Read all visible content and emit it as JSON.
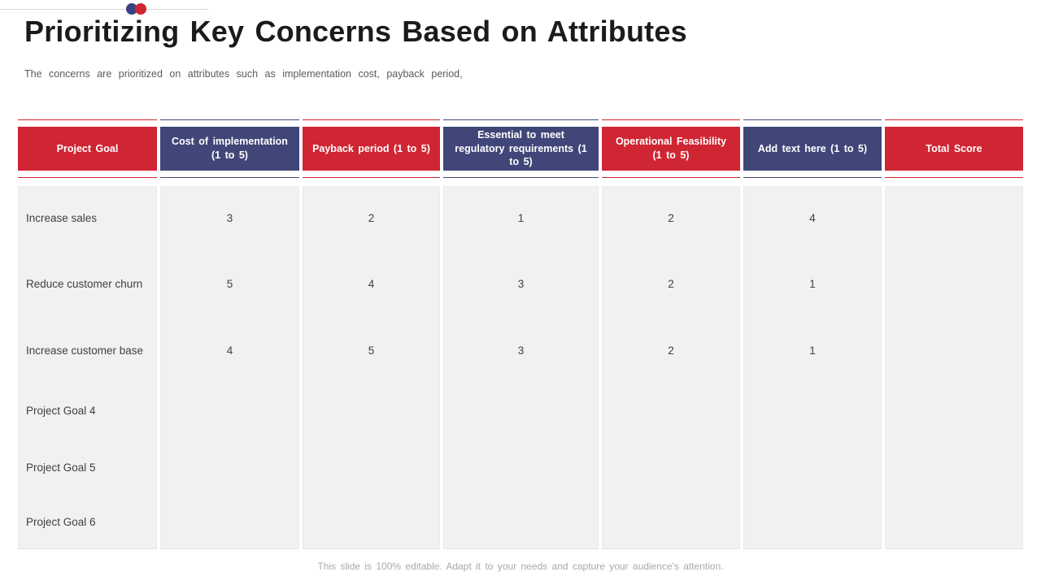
{
  "title": "Prioritizing Key Concerns Based on Attributes",
  "subtitle": "The concerns are prioritized on attributes such as implementation cost, payback period,",
  "colors": {
    "header_red": "#d02533",
    "header_navy": "#414678",
    "dot_navy": "#3a4180",
    "dot_red": "#d02533",
    "cell_background": "#f1f1f2",
    "title_text": "#1b1b1b",
    "body_text": "#404040",
    "footer_text": "#a9a9a9"
  },
  "table": {
    "columns": [
      {
        "label": "Project Goal",
        "tone": "red"
      },
      {
        "label": "Cost of implementation (1 to 5)",
        "tone": "navy"
      },
      {
        "label": "Payback period (1 to 5)",
        "tone": "red"
      },
      {
        "label": "Essential to meet regulatory requirements (1 to 5)",
        "tone": "navy"
      },
      {
        "label": "Operational Feasibility (1 to 5)",
        "tone": "red"
      },
      {
        "label": "Add text here (1 to 5)",
        "tone": "navy"
      },
      {
        "label": "Total Score",
        "tone": "red"
      }
    ],
    "rows": [
      {
        "goal": "Increase sales",
        "values": [
          "3",
          "2",
          "1",
          "2",
          "4"
        ],
        "total": ""
      },
      {
        "goal": "Reduce customer churn",
        "values": [
          "5",
          "4",
          "3",
          "2",
          "1"
        ],
        "total": ""
      },
      {
        "goal": "Increase customer base",
        "values": [
          "4",
          "5",
          "3",
          "2",
          "1"
        ],
        "total": ""
      },
      {
        "goal": "Project Goal 4",
        "values": [
          "",
          "",
          "",
          "",
          ""
        ],
        "total": ""
      },
      {
        "goal": "Project Goal 5",
        "values": [
          "",
          "",
          "",
          "",
          ""
        ],
        "total": ""
      },
      {
        "goal": "Project Goal 6",
        "values": [
          "",
          "",
          "",
          "",
          ""
        ],
        "total": ""
      }
    ]
  },
  "footer": "This slide is 100% editable. Adapt it to your needs and capture your audience's attention."
}
